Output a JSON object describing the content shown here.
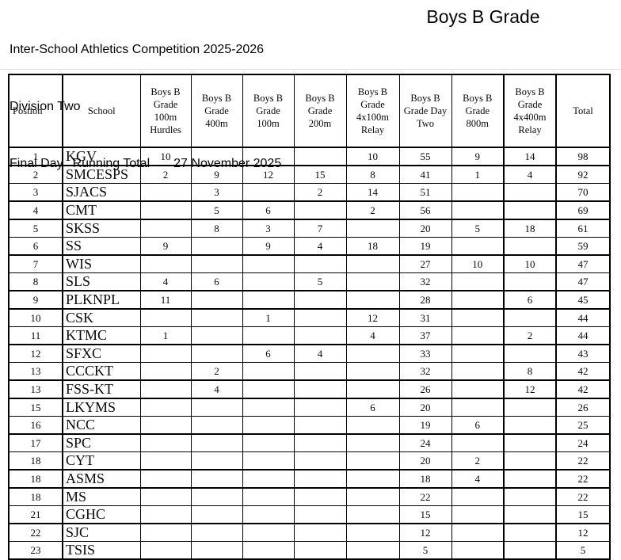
{
  "header": {
    "competition": "Inter-School Athletics Competition 2025-2026",
    "division": "Division Two",
    "day_label": "Final Day",
    "report_label": "Running Total",
    "date": "27 November 2025",
    "grade": "Boys B Grade"
  },
  "table": {
    "columns": [
      "Postion",
      "School",
      "Boys B Grade 100m Hurdles",
      "Boys B Grade 400m",
      "Boys B Grade 100m",
      "Boys B Grade 200m",
      "Boys B Grade 4x100m Relay",
      "Boys B Grade Day Two",
      "Boys B Grade 800m",
      "Boys B Grade 4x400m Relay",
      "Total"
    ],
    "event_keys": [
      "100m Hurdles",
      "400m",
      "100m",
      "200m",
      "4x100m Relay",
      "Day Two",
      "800m",
      "4x400m Relay"
    ],
    "rows": [
      {
        "position": "1",
        "school": "KGV",
        "values": [
          "10",
          "",
          "",
          "",
          "10",
          "55",
          "9",
          "14"
        ],
        "total": "98"
      },
      {
        "position": "2",
        "school": "SMCESPS",
        "values": [
          "2",
          "9",
          "12",
          "15",
          "8",
          "41",
          "1",
          "4"
        ],
        "total": "92"
      },
      {
        "position": "3",
        "school": "SJACS",
        "values": [
          "",
          "3",
          "",
          "2",
          "14",
          "51",
          "",
          ""
        ],
        "total": "70"
      },
      {
        "position": "4",
        "school": "CMT",
        "values": [
          "",
          "5",
          "6",
          "",
          "2",
          "56",
          "",
          ""
        ],
        "total": "69"
      },
      {
        "position": "5",
        "school": "SKSS",
        "values": [
          "",
          "8",
          "3",
          "7",
          "",
          "20",
          "5",
          "18"
        ],
        "total": "61"
      },
      {
        "position": "6",
        "school": "SS",
        "values": [
          "9",
          "",
          "9",
          "4",
          "18",
          "19",
          "",
          ""
        ],
        "total": "59"
      },
      {
        "position": "7",
        "school": "WIS",
        "values": [
          "",
          "",
          "",
          "",
          "",
          "27",
          "10",
          "10"
        ],
        "total": "47"
      },
      {
        "position": "8",
        "school": "SLS",
        "values": [
          "4",
          "6",
          "",
          "5",
          "",
          "32",
          "",
          ""
        ],
        "total": "47"
      },
      {
        "position": "9",
        "school": "PLKNPL",
        "values": [
          "11",
          "",
          "",
          "",
          "",
          "28",
          "",
          "6"
        ],
        "total": "45"
      },
      {
        "position": "10",
        "school": "CSK",
        "values": [
          "",
          "",
          "1",
          "",
          "12",
          "31",
          "",
          ""
        ],
        "total": "44"
      },
      {
        "position": "11",
        "school": "KTMC",
        "values": [
          "1",
          "",
          "",
          "",
          "4",
          "37",
          "",
          "2"
        ],
        "total": "44"
      },
      {
        "position": "12",
        "school": "SFXC",
        "values": [
          "",
          "",
          "6",
          "4",
          "",
          "33",
          "",
          ""
        ],
        "total": "43"
      },
      {
        "position": "13",
        "school": "CCCKT",
        "values": [
          "",
          "2",
          "",
          "",
          "",
          "32",
          "",
          "8"
        ],
        "total": "42"
      },
      {
        "position": "13",
        "school": "FSS-KT",
        "values": [
          "",
          "4",
          "",
          "",
          "",
          "26",
          "",
          "12"
        ],
        "total": "42"
      },
      {
        "position": "15",
        "school": "LKYMS",
        "values": [
          "",
          "",
          "",
          "",
          "6",
          "20",
          "",
          ""
        ],
        "total": "26"
      },
      {
        "position": "16",
        "school": "NCC",
        "values": [
          "",
          "",
          "",
          "",
          "",
          "19",
          "6",
          ""
        ],
        "total": "25"
      },
      {
        "position": "17",
        "school": "SPC",
        "values": [
          "",
          "",
          "",
          "",
          "",
          "24",
          "",
          ""
        ],
        "total": "24"
      },
      {
        "position": "18",
        "school": "CYT",
        "values": [
          "",
          "",
          "",
          "",
          "",
          "20",
          "2",
          ""
        ],
        "total": "22"
      },
      {
        "position": "18",
        "school": "ASMS",
        "values": [
          "",
          "",
          "",
          "",
          "",
          "18",
          "4",
          ""
        ],
        "total": "22"
      },
      {
        "position": "18",
        "school": "MS",
        "values": [
          "",
          "",
          "",
          "",
          "",
          "22",
          "",
          ""
        ],
        "total": "22"
      },
      {
        "position": "21",
        "school": "CGHC",
        "values": [
          "",
          "",
          "",
          "",
          "",
          "15",
          "",
          ""
        ],
        "total": "15"
      },
      {
        "position": "22",
        "school": "SJC",
        "values": [
          "",
          "",
          "",
          "",
          "",
          "12",
          "",
          ""
        ],
        "total": "12"
      },
      {
        "position": "23",
        "school": "TSIS",
        "values": [
          "",
          "",
          "",
          "",
          "",
          "5",
          "",
          ""
        ],
        "total": "5"
      }
    ]
  }
}
